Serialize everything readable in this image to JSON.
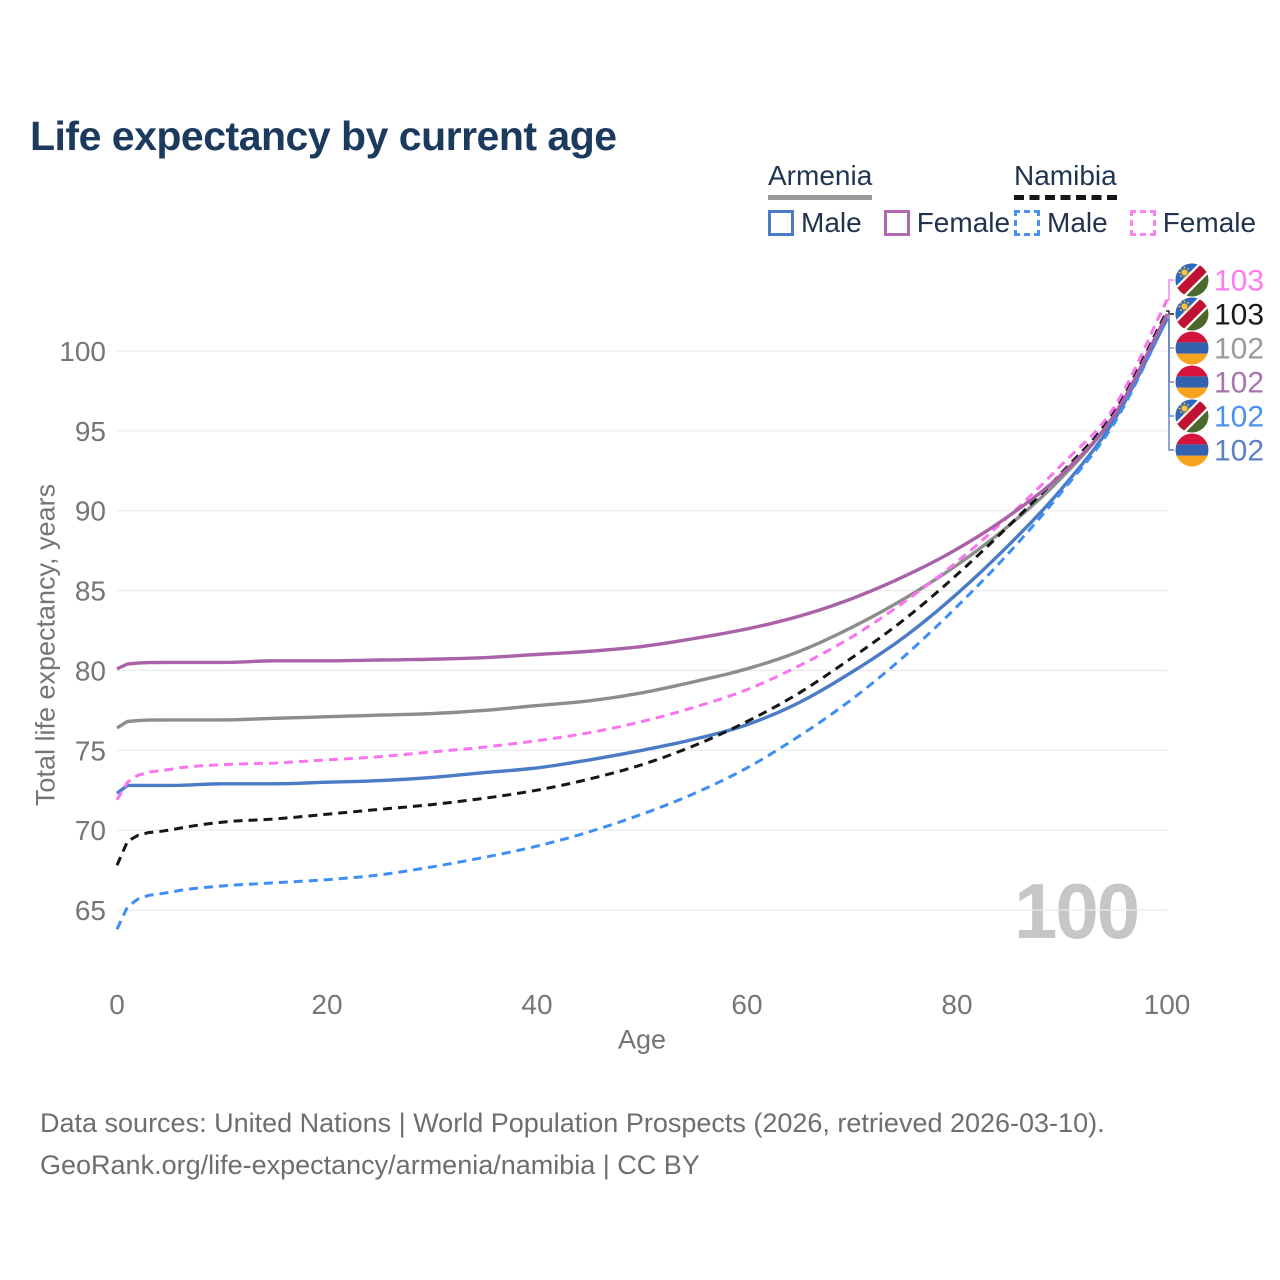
{
  "header": {
    "title": "Life expectancy by current age"
  },
  "legend": {
    "groups": [
      {
        "country": "Armenia",
        "line_style": "solid",
        "underline_color": "#9a9a9a",
        "items": [
          {
            "label": "Male",
            "color": "#4a7bc4"
          },
          {
            "label": "Female",
            "color": "#b168ae"
          }
        ]
      },
      {
        "country": "Namibia",
        "line_style": "dashed",
        "underline_color": "#161616",
        "items": [
          {
            "label": "Male",
            "color": "#4a90ee"
          },
          {
            "label": "Female",
            "color": "#fb82f1"
          }
        ]
      }
    ]
  },
  "chart_data": {
    "type": "line",
    "title": "Life expectancy by current age",
    "xlabel": "Age",
    "ylabel": "Total life expectancy, years",
    "watermark": "100",
    "grid": "horizontal",
    "legend_position": "top-right",
    "xlim": [
      0,
      100
    ],
    "ylim": [
      62,
      104.5
    ],
    "x_ticks": [
      0,
      20,
      40,
      60,
      80,
      100
    ],
    "y_ticks": [
      65,
      70,
      75,
      80,
      85,
      90,
      95,
      100
    ],
    "ages": [
      0,
      1,
      5,
      10,
      15,
      20,
      25,
      30,
      35,
      40,
      45,
      50,
      55,
      60,
      65,
      70,
      75,
      80,
      85,
      90,
      95,
      100
    ],
    "series": [
      {
        "id": "armenia_total",
        "name": "Armenia",
        "country": "Armenia",
        "sex": "Both",
        "color": "#8d8d8d",
        "dashed": false,
        "values": [
          76.4,
          76.8,
          76.9,
          76.9,
          77.0,
          77.1,
          77.2,
          77.3,
          77.5,
          77.8,
          78.1,
          78.6,
          79.3,
          80.1,
          81.2,
          82.7,
          84.5,
          86.6,
          89.1,
          92.1,
          96.0,
          102.2
        ]
      },
      {
        "id": "armenia_male",
        "name": "Armenia Male",
        "country": "Armenia",
        "sex": "Male",
        "color": "#4a7bc4",
        "dashed": false,
        "values": [
          72.3,
          72.8,
          72.8,
          72.9,
          72.9,
          73.0,
          73.1,
          73.3,
          73.6,
          73.9,
          74.4,
          75.0,
          75.7,
          76.6,
          78.0,
          79.9,
          82.1,
          84.8,
          87.9,
          91.4,
          95.7,
          102.0
        ]
      },
      {
        "id": "namibia_male",
        "name": "Namibia Male",
        "country": "Namibia",
        "sex": "Male",
        "color": "#3e8ef4",
        "dashed": true,
        "values": [
          63.8,
          65.2,
          66.1,
          66.5,
          66.7,
          66.9,
          67.2,
          67.7,
          68.3,
          69.0,
          69.9,
          71.0,
          72.3,
          73.9,
          75.9,
          78.2,
          80.9,
          84.0,
          87.4,
          91.2,
          95.5,
          102.0
        ]
      },
      {
        "id": "namibia_total",
        "name": "Namibia",
        "country": "Namibia",
        "sex": "Both",
        "color": "#161616",
        "dashed": true,
        "values": [
          67.8,
          69.3,
          70.0,
          70.5,
          70.7,
          71.0,
          71.3,
          71.6,
          72.0,
          72.5,
          73.2,
          74.1,
          75.3,
          76.8,
          78.6,
          80.8,
          83.2,
          86.0,
          89.1,
          92.4,
          96.2,
          102.5
        ]
      },
      {
        "id": "namibia_female",
        "name": "Namibia Female",
        "country": "Namibia",
        "sex": "Female",
        "color": "#fa74ef",
        "dashed": true,
        "values": [
          71.9,
          73.0,
          73.8,
          74.1,
          74.2,
          74.4,
          74.6,
          74.9,
          75.2,
          75.6,
          76.1,
          76.8,
          77.7,
          78.8,
          80.3,
          82.1,
          84.3,
          86.8,
          89.7,
          92.9,
          96.5,
          103.2
        ]
      },
      {
        "id": "armenia_female",
        "name": "Armenia Female",
        "country": "Armenia",
        "sex": "Female",
        "color": "#a962a8",
        "dashed": false,
        "values": [
          80.1,
          80.4,
          80.5,
          80.5,
          80.6,
          80.6,
          80.65,
          80.7,
          80.8,
          81.0,
          81.2,
          81.5,
          82.0,
          82.6,
          83.4,
          84.5,
          85.9,
          87.6,
          89.7,
          92.3,
          96.0,
          102.3
        ]
      }
    ],
    "end_labels": [
      {
        "series": "namibia_female",
        "value": "103",
        "color": "#ff7bf0",
        "flag": "namibia"
      },
      {
        "series": "namibia_total",
        "value": "103",
        "color": "#1a1a1a",
        "flag": "namibia"
      },
      {
        "series": "armenia_total",
        "value": "102",
        "color": "#9a9a9a",
        "flag": "armenia"
      },
      {
        "series": "armenia_female",
        "value": "102",
        "color": "#a874ae",
        "flag": "armenia"
      },
      {
        "series": "namibia_male",
        "value": "102",
        "color": "#4a90ee",
        "flag": "namibia"
      },
      {
        "series": "armenia_male",
        "value": "102",
        "color": "#5b80c4",
        "flag": "armenia"
      }
    ]
  },
  "footer": {
    "line1": "Data sources: United Nations | World Population Prospects (2026, retrieved 2026-03-10).",
    "line2": "GeoRank.org/life-expectancy/armenia/namibia | CC BY"
  }
}
